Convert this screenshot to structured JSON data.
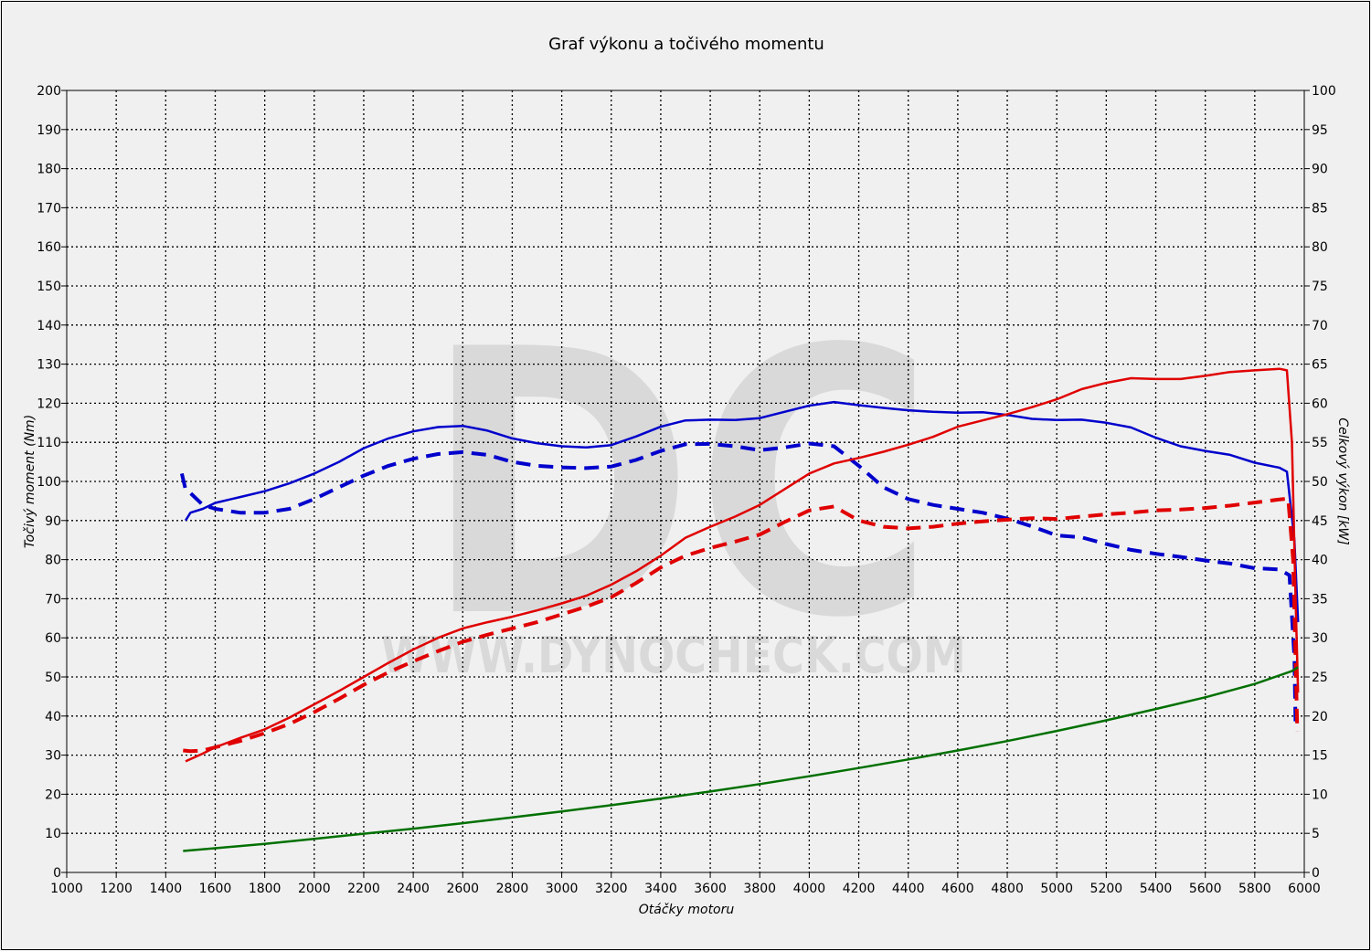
{
  "chart_data": {
    "type": "line",
    "title": "Graf výkonu a točivého momentu",
    "xlabel": "Otáčky motoru",
    "ylabel_left": "Točivý moment (Nm)",
    "ylabel_right": "Celkový výkon [kW]",
    "xlim": [
      1000,
      6000
    ],
    "ylim_left": [
      0,
      200
    ],
    "ylim_right": [
      0,
      100
    ],
    "x_ticks": [
      "1000",
      "1200",
      "1400",
      "1600",
      "1800",
      "2000",
      "2200",
      "2400",
      "2600",
      "2800",
      "3000",
      "3200",
      "3400",
      "3600",
      "3800",
      "4000",
      "4200",
      "4400",
      "4600",
      "4800",
      "5000",
      "5200",
      "5400",
      "5600",
      "5800",
      "6000"
    ],
    "y_left_ticks": [
      "0",
      "10",
      "20",
      "30",
      "40",
      "50",
      "60",
      "70",
      "80",
      "90",
      "100",
      "110",
      "120",
      "130",
      "140",
      "150",
      "160",
      "170",
      "180",
      "190",
      "200"
    ],
    "y_right_ticks": [
      "0",
      "5",
      "10",
      "15",
      "20",
      "25",
      "30",
      "35",
      "40",
      "45",
      "50",
      "55",
      "60",
      "65",
      "70",
      "75",
      "80",
      "85",
      "90",
      "95",
      "100"
    ],
    "grid": true,
    "watermark": {
      "letters": "DC",
      "url": "WWW.DYNOCHECK.COM"
    },
    "series": [
      {
        "key": "torque_tuned",
        "axis": "left",
        "color": "#0000cc",
        "dash": "solid",
        "points": [
          [
            1480,
            90
          ],
          [
            1500,
            92
          ],
          [
            1550,
            93
          ],
          [
            1600,
            94.5
          ],
          [
            1700,
            96
          ],
          [
            1800,
            97.5
          ],
          [
            1900,
            99.5
          ],
          [
            2000,
            102
          ],
          [
            2100,
            105
          ],
          [
            2200,
            108.5
          ],
          [
            2300,
            111
          ],
          [
            2400,
            112.8
          ],
          [
            2500,
            113.9
          ],
          [
            2600,
            114.2
          ],
          [
            2700,
            113
          ],
          [
            2800,
            111
          ],
          [
            2900,
            109.8
          ],
          [
            3000,
            109
          ],
          [
            3100,
            108.7
          ],
          [
            3200,
            109.3
          ],
          [
            3300,
            111.5
          ],
          [
            3400,
            114
          ],
          [
            3500,
            115.6
          ],
          [
            3600,
            115.8
          ],
          [
            3700,
            115.7
          ],
          [
            3800,
            116.2
          ],
          [
            3900,
            117.8
          ],
          [
            4000,
            119.4
          ],
          [
            4100,
            120.3
          ],
          [
            4200,
            119.5
          ],
          [
            4300,
            118.8
          ],
          [
            4400,
            118.2
          ],
          [
            4500,
            117.8
          ],
          [
            4600,
            117.6
          ],
          [
            4700,
            117.7
          ],
          [
            4800,
            117
          ],
          [
            4900,
            116
          ],
          [
            5000,
            115.7
          ],
          [
            5100,
            115.8
          ],
          [
            5200,
            115
          ],
          [
            5300,
            113.8
          ],
          [
            5400,
            111.2
          ],
          [
            5500,
            109
          ],
          [
            5600,
            107.8
          ],
          [
            5700,
            106.8
          ],
          [
            5800,
            104.8
          ],
          [
            5900,
            103.5
          ],
          [
            5930,
            102.5
          ],
          [
            5960,
            85
          ],
          [
            5975,
            64
          ]
        ]
      },
      {
        "key": "torque_stock",
        "axis": "left",
        "color": "#0000cc",
        "dash": "dashed",
        "points": [
          [
            1465,
            102
          ],
          [
            1480,
            98
          ],
          [
            1500,
            97
          ],
          [
            1550,
            94
          ],
          [
            1600,
            93
          ],
          [
            1700,
            92
          ],
          [
            1800,
            92
          ],
          [
            1900,
            93
          ],
          [
            2000,
            95.5
          ],
          [
            2100,
            98.5
          ],
          [
            2200,
            101.5
          ],
          [
            2300,
            104
          ],
          [
            2400,
            105.8
          ],
          [
            2500,
            107
          ],
          [
            2600,
            107.5
          ],
          [
            2700,
            106.8
          ],
          [
            2800,
            105
          ],
          [
            2900,
            104
          ],
          [
            3000,
            103.6
          ],
          [
            3100,
            103.4
          ],
          [
            3200,
            103.8
          ],
          [
            3300,
            105.5
          ],
          [
            3400,
            107.8
          ],
          [
            3500,
            109.5
          ],
          [
            3600,
            109.6
          ],
          [
            3700,
            109
          ],
          [
            3800,
            108
          ],
          [
            3900,
            108.7
          ],
          [
            4000,
            109.7
          ],
          [
            4100,
            109
          ],
          [
            4200,
            104
          ],
          [
            4300,
            98.5
          ],
          [
            4400,
            95.5
          ],
          [
            4500,
            94
          ],
          [
            4600,
            93
          ],
          [
            4700,
            92
          ],
          [
            4800,
            90.5
          ],
          [
            4900,
            88.5
          ],
          [
            5000,
            86.2
          ],
          [
            5100,
            85.7
          ],
          [
            5200,
            84
          ],
          [
            5300,
            82.5
          ],
          [
            5400,
            81.5
          ],
          [
            5500,
            80.7
          ],
          [
            5600,
            79.8
          ],
          [
            5700,
            79
          ],
          [
            5800,
            77.8
          ],
          [
            5900,
            77.5
          ],
          [
            5940,
            76
          ],
          [
            5960,
            55
          ],
          [
            5965,
            37
          ]
        ]
      },
      {
        "key": "power_tuned",
        "axis": "right",
        "color": "#e00000",
        "dash": "solid",
        "points": [
          [
            1480,
            14.2
          ],
          [
            1550,
            15.2
          ],
          [
            1600,
            16
          ],
          [
            1700,
            17.2
          ],
          [
            1800,
            18.3
          ],
          [
            1900,
            19.8
          ],
          [
            2000,
            21.5
          ],
          [
            2100,
            23.2
          ],
          [
            2200,
            25
          ],
          [
            2300,
            26.8
          ],
          [
            2400,
            28.5
          ],
          [
            2500,
            30
          ],
          [
            2600,
            31.2
          ],
          [
            2700,
            32
          ],
          [
            2800,
            32.7
          ],
          [
            2900,
            33.5
          ],
          [
            3000,
            34.4
          ],
          [
            3100,
            35.4
          ],
          [
            3200,
            36.8
          ],
          [
            3300,
            38.5
          ],
          [
            3400,
            40.5
          ],
          [
            3500,
            42.8
          ],
          [
            3600,
            44.2
          ],
          [
            3700,
            45.5
          ],
          [
            3800,
            47
          ],
          [
            3900,
            49
          ],
          [
            4000,
            51
          ],
          [
            4100,
            52.3
          ],
          [
            4200,
            53
          ],
          [
            4300,
            53.8
          ],
          [
            4400,
            54.7
          ],
          [
            4500,
            55.7
          ],
          [
            4600,
            57
          ],
          [
            4700,
            57.8
          ],
          [
            4800,
            58.6
          ],
          [
            4900,
            59.5
          ],
          [
            5000,
            60.5
          ],
          [
            5100,
            61.8
          ],
          [
            5200,
            62.6
          ],
          [
            5300,
            63.2
          ],
          [
            5400,
            63.1
          ],
          [
            5500,
            63.1
          ],
          [
            5600,
            63.5
          ],
          [
            5700,
            64
          ],
          [
            5800,
            64.2
          ],
          [
            5900,
            64.4
          ],
          [
            5930,
            64.2
          ],
          [
            5950,
            55
          ],
          [
            5965,
            35
          ],
          [
            5975,
            23
          ]
        ]
      },
      {
        "key": "power_stock",
        "axis": "right",
        "color": "#e00000",
        "dash": "dashed",
        "points": [
          [
            1470,
            15.6
          ],
          [
            1500,
            15.5
          ],
          [
            1550,
            15.6
          ],
          [
            1600,
            16
          ],
          [
            1700,
            16.8
          ],
          [
            1800,
            17.8
          ],
          [
            1900,
            19
          ],
          [
            2000,
            20.5
          ],
          [
            2100,
            22.2
          ],
          [
            2200,
            24
          ],
          [
            2300,
            25.6
          ],
          [
            2400,
            27
          ],
          [
            2500,
            28.3
          ],
          [
            2600,
            29.5
          ],
          [
            2700,
            30.4
          ],
          [
            2800,
            31.2
          ],
          [
            2900,
            32
          ],
          [
            3000,
            33
          ],
          [
            3100,
            34
          ],
          [
            3200,
            35.2
          ],
          [
            3300,
            37
          ],
          [
            3400,
            39
          ],
          [
            3500,
            40.5
          ],
          [
            3600,
            41.5
          ],
          [
            3700,
            42.3
          ],
          [
            3800,
            43.2
          ],
          [
            3900,
            44.8
          ],
          [
            4000,
            46.3
          ],
          [
            4100,
            46.8
          ],
          [
            4200,
            45
          ],
          [
            4300,
            44.2
          ],
          [
            4400,
            44
          ],
          [
            4500,
            44.2
          ],
          [
            4600,
            44.6
          ],
          [
            4700,
            44.9
          ],
          [
            4800,
            45.1
          ],
          [
            4900,
            45.3
          ],
          [
            5000,
            45.2
          ],
          [
            5100,
            45.5
          ],
          [
            5200,
            45.8
          ],
          [
            5300,
            46
          ],
          [
            5400,
            46.3
          ],
          [
            5500,
            46.4
          ],
          [
            5600,
            46.6
          ],
          [
            5700,
            46.9
          ],
          [
            5800,
            47.3
          ],
          [
            5900,
            47.7
          ],
          [
            5935,
            47.8
          ],
          [
            5955,
            40
          ],
          [
            5965,
            27
          ],
          [
            5972,
            18
          ]
        ]
      },
      {
        "key": "wheel_loss",
        "axis": "left",
        "color": "#007000",
        "dash": "solid",
        "points": [
          [
            1470,
            5.5
          ],
          [
            1600,
            6.2
          ],
          [
            1800,
            7.3
          ],
          [
            2000,
            8.6
          ],
          [
            2200,
            9.9
          ],
          [
            2400,
            11.2
          ],
          [
            2600,
            12.6
          ],
          [
            2800,
            14.1
          ],
          [
            3000,
            15.6
          ],
          [
            3200,
            17.2
          ],
          [
            3400,
            18.9
          ],
          [
            3600,
            20.7
          ],
          [
            3800,
            22.6
          ],
          [
            4000,
            24.6
          ],
          [
            4200,
            26.7
          ],
          [
            4400,
            28.9
          ],
          [
            4600,
            31.2
          ],
          [
            4800,
            33.6
          ],
          [
            5000,
            36.2
          ],
          [
            5200,
            38.9
          ],
          [
            5400,
            41.8
          ],
          [
            5600,
            44.8
          ],
          [
            5800,
            48.2
          ],
          [
            5950,
            51.5
          ],
          [
            5975,
            52.5
          ]
        ]
      }
    ]
  }
}
